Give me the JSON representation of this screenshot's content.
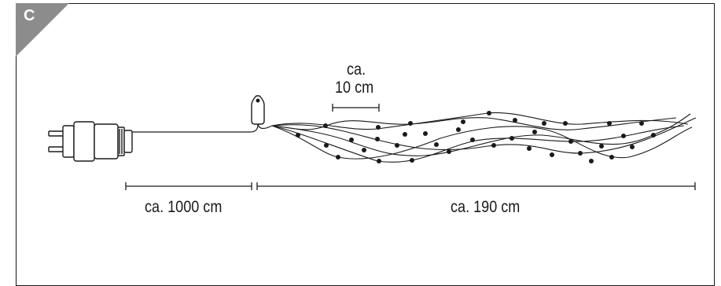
{
  "panel": {
    "letter": "C"
  },
  "labels": {
    "spacing_line1": "ca.",
    "spacing_line2": "10 cm",
    "cable_length": "ca. 1000 cm",
    "lights_length": "ca. 190 cm"
  },
  "colors": {
    "line": "#1a1a1a",
    "corner": "#8c8c8c"
  },
  "icons": [
    "plug-icon",
    "transformer-icon",
    "led-light-icon"
  ]
}
